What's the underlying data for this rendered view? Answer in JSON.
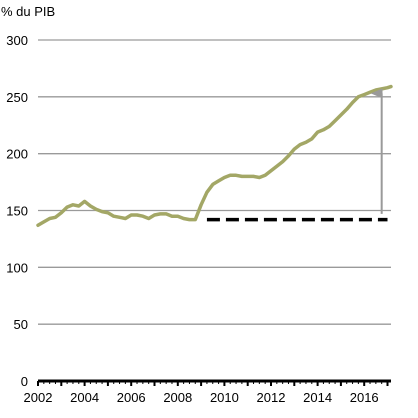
{
  "chart_data": {
    "type": "line",
    "title": "",
    "ylabel": "% du PIB",
    "xlabel": "",
    "xlim": [
      2002,
      2017.15
    ],
    "ylim": [
      0,
      300
    ],
    "yticks": [
      0,
      50,
      100,
      150,
      200,
      250,
      300
    ],
    "xticks": [
      2002,
      2004,
      2006,
      2008,
      2010,
      2012,
      2014,
      2016
    ],
    "grid": "horizontal",
    "colors": {
      "series": "#a3a766",
      "axis": "#000000",
      "grid": "#9a9a9a",
      "dashed": "#000000",
      "arrow": "#9a9a9a"
    },
    "series": [
      {
        "x": [
          2002.0,
          2002.25,
          2002.5,
          2002.75,
          2003.0,
          2003.25,
          2003.5,
          2003.75,
          2004.0,
          2004.25,
          2004.5,
          2004.75,
          2005.0,
          2005.25,
          2005.5,
          2005.75,
          2006.0,
          2006.25,
          2006.5,
          2006.75,
          2007.0,
          2007.25,
          2007.5,
          2007.75,
          2008.0,
          2008.25,
          2008.5,
          2008.75,
          2009.0,
          2009.25,
          2009.5,
          2009.75,
          2010.0,
          2010.25,
          2010.5,
          2010.75,
          2011.0,
          2011.25,
          2011.5,
          2011.75,
          2012.0,
          2012.25,
          2012.5,
          2012.75,
          2013.0,
          2013.25,
          2013.5,
          2013.75,
          2014.0,
          2014.25,
          2014.5,
          2014.75,
          2015.0,
          2015.25,
          2015.5,
          2015.75,
          2016.0,
          2016.25,
          2016.5,
          2016.75,
          2017.0,
          2017.15
        ],
        "values": [
          137,
          140,
          143,
          144,
          148,
          153,
          155,
          154,
          158,
          154,
          151,
          149,
          148,
          145,
          144,
          143,
          146,
          146,
          145,
          143,
          146,
          147,
          147,
          145,
          145,
          143,
          142,
          142,
          155,
          166,
          173,
          176,
          179,
          181,
          181,
          180,
          180,
          180,
          179,
          181,
          185,
          189,
          193,
          198,
          204,
          208,
          210,
          213,
          219,
          221,
          224,
          229,
          234,
          239,
          245,
          250,
          252,
          254,
          256,
          257,
          258,
          259
        ]
      }
    ],
    "reference": {
      "x_start": 2009.25,
      "x_end": 2017.0,
      "y": 142,
      "style": "dashed"
    },
    "arrow": {
      "x": 2016.75,
      "y_from": 147,
      "y_to": 253
    }
  }
}
